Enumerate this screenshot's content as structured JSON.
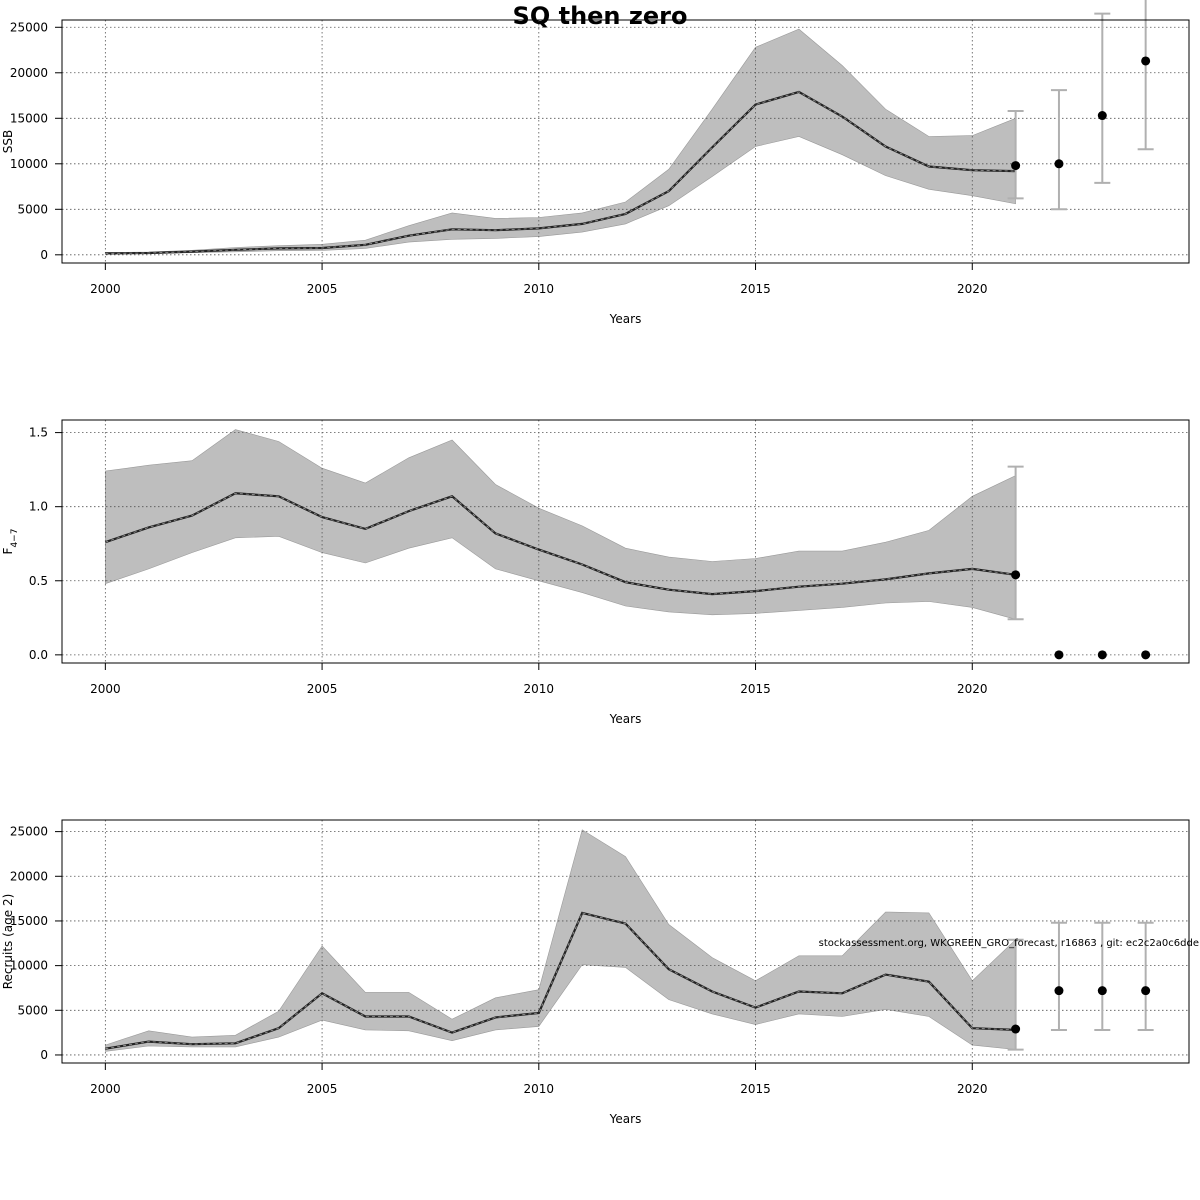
{
  "title": "SQ then zero",
  "footnote": "stockassessment.org, WKGREEN_GRO_forecast, r16863 , git: ec2c2a0c6dde",
  "colors": {
    "band": "#bebebe",
    "band_edge": "#9a9a9a",
    "line": "#222222",
    "errorbar": "#b0b0b0",
    "point": "#000000",
    "grid": "#555555"
  },
  "chart_data": [
    {
      "type": "line",
      "name": "ssb",
      "xlabel": "Years",
      "ylabel": "SSB",
      "xticks": [
        2000,
        2005,
        2010,
        2015,
        2020
      ],
      "yticks": [
        0,
        5000,
        10000,
        15000,
        20000,
        25000
      ],
      "xlim": [
        1999,
        2025
      ],
      "ylim": [
        -900,
        25800
      ],
      "grid": true,
      "x": [
        2000,
        2001,
        2002,
        2003,
        2004,
        2005,
        2006,
        2007,
        2008,
        2009,
        2010,
        2011,
        2012,
        2013,
        2014,
        2015,
        2016,
        2017,
        2018,
        2019,
        2020,
        2021
      ],
      "estimate": [
        150,
        200,
        350,
        550,
        700,
        750,
        1100,
        2100,
        2800,
        2700,
        2900,
        3400,
        4500,
        7000,
        11800,
        16500,
        17900,
        15200,
        11900,
        9700,
        9300,
        9200
      ],
      "lower": [
        80,
        130,
        230,
        330,
        450,
        480,
        700,
        1400,
        1700,
        1800,
        2000,
        2500,
        3400,
        5400,
        8600,
        11900,
        13000,
        11000,
        8700,
        7200,
        6500,
        5600
      ],
      "upper": [
        250,
        300,
        500,
        800,
        1000,
        1150,
        1600,
        3200,
        4600,
        4000,
        4100,
        4600,
        5800,
        9400,
        16000,
        22800,
        24800,
        20800,
        16000,
        13000,
        13100,
        15000
      ],
      "forecast": [
        {
          "x": 2021,
          "value": 9800,
          "low": 6200,
          "high": 15800
        },
        {
          "x": 2022,
          "value": 10000,
          "low": 5000,
          "high": 18100
        },
        {
          "x": 2023,
          "value": 15300,
          "low": 7900,
          "high": 26500
        },
        {
          "x": 2024,
          "value": 21300,
          "low": 11600,
          "high": 28000
        }
      ]
    },
    {
      "type": "line",
      "name": "fbar",
      "xlabel": "Years",
      "ylabel": "F",
      "ylabel_sub": "4−7",
      "xticks": [
        2000,
        2005,
        2010,
        2015,
        2020
      ],
      "yticks": [
        0.0,
        0.5,
        1.0,
        1.5
      ],
      "ytick_labels": [
        "0.0",
        "0.5",
        "1.0",
        "1.5"
      ],
      "xlim": [
        1999,
        2025
      ],
      "ylim": [
        -0.055,
        1.585
      ],
      "grid": true,
      "x": [
        2000,
        2001,
        2002,
        2003,
        2004,
        2005,
        2006,
        2007,
        2008,
        2009,
        2010,
        2011,
        2012,
        2013,
        2014,
        2015,
        2016,
        2017,
        2018,
        2019,
        2020,
        2021
      ],
      "estimate": [
        0.76,
        0.86,
        0.94,
        1.09,
        1.07,
        0.93,
        0.85,
        0.97,
        1.07,
        0.82,
        0.71,
        0.61,
        0.49,
        0.44,
        0.41,
        0.43,
        0.46,
        0.48,
        0.51,
        0.55,
        0.58,
        0.54
      ],
      "lower": [
        0.48,
        0.58,
        0.69,
        0.79,
        0.8,
        0.69,
        0.62,
        0.72,
        0.79,
        0.58,
        0.5,
        0.42,
        0.33,
        0.29,
        0.27,
        0.28,
        0.3,
        0.32,
        0.35,
        0.36,
        0.32,
        0.24
      ],
      "upper": [
        1.24,
        1.28,
        1.31,
        1.52,
        1.44,
        1.26,
        1.16,
        1.33,
        1.45,
        1.15,
        0.99,
        0.87,
        0.72,
        0.66,
        0.63,
        0.65,
        0.7,
        0.7,
        0.76,
        0.84,
        1.07,
        1.21
      ],
      "forecast": [
        {
          "x": 2021,
          "value": 0.54,
          "low": 0.24,
          "high": 1.27
        },
        {
          "x": 2022,
          "value": 0.0
        },
        {
          "x": 2023,
          "value": 0.0
        },
        {
          "x": 2024,
          "value": 0.0
        }
      ]
    },
    {
      "type": "line",
      "name": "recruits",
      "xlabel": "Years",
      "ylabel": "Recruits (age 2)",
      "xticks": [
        2000,
        2005,
        2010,
        2015,
        2020
      ],
      "yticks": [
        0,
        5000,
        10000,
        15000,
        20000,
        25000
      ],
      "xlim": [
        1999,
        2025
      ],
      "ylim": [
        -900,
        26300
      ],
      "grid": true,
      "x": [
        2000,
        2001,
        2002,
        2003,
        2004,
        2005,
        2006,
        2007,
        2008,
        2009,
        2010,
        2011,
        2012,
        2013,
        2014,
        2015,
        2016,
        2017,
        2018,
        2019,
        2020,
        2021
      ],
      "estimate": [
        700,
        1500,
        1200,
        1300,
        3000,
        6900,
        4300,
        4300,
        2500,
        4200,
        4700,
        15900,
        14700,
        9600,
        7100,
        5300,
        7100,
        6900,
        9000,
        8200,
        3000,
        2800
      ],
      "lower": [
        400,
        1000,
        900,
        900,
        2000,
        3900,
        2800,
        2700,
        1600,
        2800,
        3200,
        10100,
        9800,
        6200,
        4600,
        3400,
        4600,
        4300,
        5100,
        4300,
        1100,
        600
      ],
      "upper": [
        1100,
        2700,
        2000,
        2200,
        4900,
        12200,
        7000,
        7000,
        4000,
        6400,
        7300,
        25200,
        22200,
        14600,
        10900,
        8300,
        11100,
        11100,
        16000,
        15900,
        8300,
        12900
      ],
      "forecast": [
        {
          "x": 2021,
          "value": 2900,
          "low": 600,
          "high": 12900
        },
        {
          "x": 2022,
          "value": 7200,
          "low": 2800,
          "high": 14800
        },
        {
          "x": 2023,
          "value": 7200,
          "low": 2800,
          "high": 14800
        },
        {
          "x": 2024,
          "value": 7200,
          "low": 2800,
          "high": 14800
        }
      ]
    }
  ]
}
